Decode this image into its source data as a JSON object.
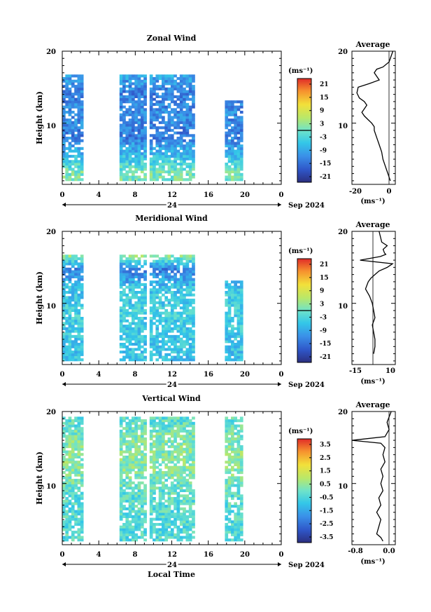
{
  "panels": [
    {
      "id": "zonal",
      "title": "Zonal Wind",
      "ylabel": "Height (km)",
      "yticks": [
        "20",
        "10"
      ],
      "xticks": [
        "0",
        "4",
        "8",
        "12",
        "16",
        "20",
        "0"
      ],
      "date_center": "24",
      "date_right": "Sep 2024",
      "colorbar": {
        "unit": "(ms⁻¹)",
        "ticks": [
          "21",
          "15",
          "9",
          "3",
          "-3",
          "-9",
          "-15",
          "-21"
        ],
        "range": [
          -24,
          24
        ],
        "zero_line": true
      },
      "average": {
        "title": "Average",
        "yticks": [
          "20",
          "10"
        ],
        "xticks": [
          "-20",
          "0"
        ],
        "xunit": "(ms⁻¹)"
      }
    },
    {
      "id": "meridional",
      "title": "Meridional Wind",
      "ylabel": "Height (km)",
      "yticks": [
        "20",
        "10"
      ],
      "xticks": [
        "0",
        "4",
        "8",
        "12",
        "16",
        "20",
        "0"
      ],
      "date_center": "24",
      "date_right": "Sep 2024",
      "colorbar": {
        "unit": "(ms⁻¹)",
        "ticks": [
          "21",
          "15",
          "9",
          "3",
          "-3",
          "-9",
          "-15",
          "-21"
        ],
        "range": [
          -24,
          24
        ],
        "zero_line": true
      },
      "average": {
        "title": "Average",
        "yticks": [
          "20",
          "10"
        ],
        "xticks": [
          "-15",
          "10"
        ],
        "xunit": "(ms⁻¹)"
      }
    },
    {
      "id": "vertical",
      "title": "Vertical Wind",
      "ylabel": "Height (km)",
      "yticks": [
        "20",
        "10"
      ],
      "xticks": [
        "0",
        "4",
        "8",
        "12",
        "16",
        "20",
        "0"
      ],
      "date_center": "24",
      "date_right": "Sep 2024",
      "xlabel": "Local Time",
      "colorbar": {
        "unit": "(ms⁻¹)",
        "ticks": [
          "3.5",
          "2.5",
          "1.5",
          "0.5",
          "-0.5",
          "-1.5",
          "-2.5",
          "-3.5"
        ],
        "range": [
          -4,
          4
        ],
        "zero_line": false
      },
      "average": {
        "title": "Average",
        "yticks": [
          "20",
          "10"
        ],
        "xticks": [
          "-0.8",
          "0.0"
        ],
        "xunit": "(ms⁻¹)"
      }
    }
  ],
  "chart_data": [
    {
      "type": "heatmap",
      "title": "Zonal Wind",
      "xlabel": "",
      "ylabel": "Height (km)",
      "xlim": [
        0,
        24
      ],
      "ylim": [
        1.5,
        20
      ],
      "colorscale_range": [
        -24,
        24
      ],
      "data_gaps_hours": [
        [
          2.2,
          6
        ],
        [
          9,
          9.4
        ],
        [
          14.5,
          17.8
        ],
        [
          19.5,
          24
        ]
      ],
      "note_levels": [
        {
          "height_km": 17,
          "value": -8
        },
        {
          "height_km": 14,
          "value": -14
        },
        {
          "height_km": 11,
          "value": -12
        },
        {
          "height_km": 8,
          "value": -14
        },
        {
          "height_km": 5,
          "value": -6
        },
        {
          "height_km": 3,
          "value": 1
        }
      ]
    },
    {
      "type": "line",
      "title": "Average",
      "xlabel": "(ms⁻¹)",
      "ylabel": "",
      "xlim": [
        -30,
        5
      ],
      "ylim": [
        1.5,
        20
      ],
      "x": [
        3,
        0,
        -5,
        -10,
        -12,
        -8,
        -16,
        -25,
        -26,
        -24,
        -20,
        -18,
        -20,
        -22,
        -20,
        -17,
        -14,
        -12,
        -12,
        -10,
        -8,
        -6,
        -5,
        -3,
        -2,
        -1,
        0,
        1
      ],
      "y": [
        20,
        18.5,
        17.8,
        17.5,
        17,
        16,
        15.5,
        15,
        14.2,
        13.5,
        13,
        12.5,
        12,
        11.5,
        11,
        10.5,
        10,
        9.5,
        9,
        8,
        7,
        6,
        5,
        4,
        3.5,
        3,
        2.5,
        2
      ]
    },
    {
      "type": "heatmap",
      "title": "Meridional Wind",
      "xlabel": "",
      "ylabel": "Height (km)",
      "xlim": [
        0,
        24
      ],
      "ylim": [
        1.5,
        20
      ],
      "colorscale_range": [
        -24,
        24
      ],
      "data_gaps_hours": [
        [
          2.2,
          6
        ],
        [
          9,
          9.4
        ],
        [
          14.5,
          17.8
        ],
        [
          19.5,
          24
        ]
      ],
      "note_levels": [
        {
          "height_km": 16.5,
          "value": 3
        },
        {
          "height_km": 14.5,
          "value": -14
        },
        {
          "height_km": 12,
          "value": -6
        },
        {
          "height_km": 9,
          "value": -4
        },
        {
          "height_km": 6,
          "value": -5
        },
        {
          "height_km": 3,
          "value": -6
        }
      ]
    },
    {
      "type": "line",
      "title": "Average",
      "xlabel": "(ms⁻¹)",
      "ylabel": "",
      "xlim": [
        -20,
        12
      ],
      "ylim": [
        1.5,
        20
      ],
      "x": [
        0,
        2,
        6,
        3,
        4,
        5,
        1,
        -14,
        10,
        6,
        0,
        -3,
        -6,
        -8,
        -10,
        -7,
        -5,
        -4,
        -3,
        -5,
        -4,
        -3,
        -3,
        -4
      ],
      "y": [
        20,
        18.5,
        18,
        17.5,
        17,
        16.8,
        16.5,
        16,
        15.5,
        15,
        14.5,
        14,
        13.5,
        13,
        12,
        11,
        10,
        9,
        8,
        7,
        6,
        5,
        4,
        3
      ]
    },
    {
      "type": "heatmap",
      "title": "Vertical Wind",
      "xlabel": "Local Time",
      "ylabel": "Height (km)",
      "xlim": [
        0,
        24
      ],
      "ylim": [
        1.5,
        20
      ],
      "colorscale_range": [
        -4,
        4
      ],
      "data_gaps_hours": [
        [
          2.2,
          6
        ],
        [
          9,
          9.4
        ],
        [
          14.5,
          17.8
        ],
        [
          19.5,
          24
        ]
      ],
      "note_levels": [
        {
          "height_km": 18,
          "value": -0.2
        },
        {
          "height_km": 16.5,
          "value": 0.2
        },
        {
          "height_km": 12,
          "value": 0.4
        },
        {
          "height_km": 8,
          "value": -0.3
        },
        {
          "height_km": 4,
          "value": -0.4
        }
      ]
    },
    {
      "type": "line",
      "title": "Average",
      "xlabel": "(ms⁻¹)",
      "ylabel": "",
      "xlim": [
        -0.9,
        0.15
      ],
      "ylim": [
        1.5,
        20
      ],
      "x": [
        0.05,
        -0.05,
        0.0,
        -0.1,
        -0.9,
        -0.2,
        -0.1,
        -0.15,
        -0.1,
        -0.2,
        -0.15,
        -0.2,
        -0.15,
        -0.25,
        -0.2,
        -0.3,
        -0.2,
        -0.25,
        -0.3,
        -0.2,
        -0.15
      ],
      "y": [
        20,
        18.5,
        17.5,
        16.5,
        16,
        15.6,
        15,
        14,
        13,
        12,
        11,
        10,
        9,
        8,
        7,
        6,
        5,
        4,
        3,
        2.5,
        2
      ]
    }
  ]
}
